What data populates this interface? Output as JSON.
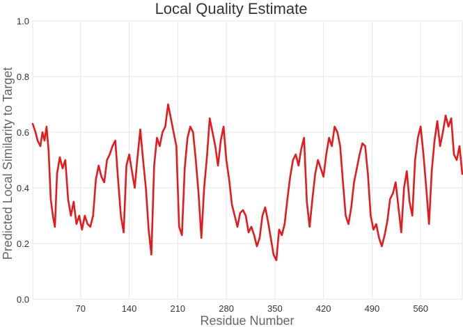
{
  "chart_data": {
    "type": "line",
    "title": "Local Quality Estimate",
    "xlabel": "Residue Number",
    "ylabel": "Predicted Local Similarity to Target",
    "xlim": [
      1,
      620
    ],
    "ylim": [
      0,
      1
    ],
    "xticks": [
      70,
      140,
      210,
      280,
      350,
      420,
      490,
      560
    ],
    "yticks": [
      0.0,
      0.2,
      0.4,
      0.6,
      0.8,
      1.0
    ],
    "ytick_labels": [
      "0.0",
      "0.2",
      "0.4",
      "0.6",
      "0.8",
      "1.0"
    ],
    "grid": true,
    "legend": "none",
    "colors": {
      "series": "#e41a1c",
      "grid": "#e6e6e6"
    },
    "series": [
      {
        "x": [
          1,
          5,
          8,
          12,
          15,
          18,
          21,
          24,
          27,
          30,
          33,
          36,
          40,
          44,
          48,
          52,
          56,
          60,
          64,
          68,
          72,
          76,
          80,
          84,
          88,
          92,
          96,
          100,
          104,
          108,
          112,
          116,
          120,
          124,
          128,
          132,
          136,
          140,
          144,
          148,
          152,
          156,
          160,
          164,
          168,
          172,
          176,
          180,
          184,
          188,
          192,
          196,
          200,
          204,
          208,
          212,
          216,
          220,
          224,
          228,
          232,
          236,
          240,
          244,
          248,
          252,
          256,
          260,
          264,
          268,
          272,
          276,
          280,
          284,
          288,
          292,
          296,
          300,
          304,
          308,
          312,
          316,
          320,
          324,
          328,
          332,
          336,
          340,
          344,
          348,
          352,
          356,
          360,
          364,
          368,
          372,
          376,
          380,
          384,
          388,
          392,
          396,
          400,
          404,
          408,
          412,
          416,
          420,
          424,
          428,
          432,
          436,
          440,
          444,
          448,
          452,
          456,
          460,
          464,
          468,
          472,
          476,
          480,
          484,
          488,
          492,
          496,
          500,
          504,
          508,
          512,
          516,
          520,
          524,
          528,
          532,
          536,
          540,
          544,
          548,
          552,
          556,
          560,
          564,
          568,
          572,
          576,
          580,
          584,
          588,
          592,
          596,
          600,
          604,
          608,
          612,
          616,
          620
        ],
        "y": [
          0.63,
          0.6,
          0.57,
          0.55,
          0.6,
          0.57,
          0.62,
          0.53,
          0.36,
          0.3,
          0.26,
          0.45,
          0.51,
          0.47,
          0.5,
          0.36,
          0.3,
          0.35,
          0.27,
          0.3,
          0.25,
          0.3,
          0.27,
          0.26,
          0.3,
          0.43,
          0.48,
          0.44,
          0.42,
          0.5,
          0.52,
          0.55,
          0.57,
          0.43,
          0.3,
          0.24,
          0.48,
          0.52,
          0.46,
          0.4,
          0.51,
          0.61,
          0.5,
          0.4,
          0.25,
          0.16,
          0.48,
          0.58,
          0.55,
          0.6,
          0.62,
          0.7,
          0.65,
          0.6,
          0.55,
          0.26,
          0.23,
          0.47,
          0.58,
          0.62,
          0.6,
          0.5,
          0.38,
          0.22,
          0.4,
          0.51,
          0.65,
          0.6,
          0.55,
          0.48,
          0.57,
          0.62,
          0.5,
          0.43,
          0.34,
          0.3,
          0.26,
          0.31,
          0.32,
          0.3,
          0.24,
          0.26,
          0.23,
          0.19,
          0.22,
          0.3,
          0.33,
          0.28,
          0.22,
          0.16,
          0.14,
          0.25,
          0.23,
          0.27,
          0.36,
          0.44,
          0.5,
          0.52,
          0.48,
          0.54,
          0.58,
          0.35,
          0.26,
          0.36,
          0.45,
          0.5,
          0.47,
          0.44,
          0.52,
          0.58,
          0.55,
          0.62,
          0.6,
          0.55,
          0.42,
          0.3,
          0.27,
          0.33,
          0.42,
          0.47,
          0.52,
          0.56,
          0.55,
          0.45,
          0.3,
          0.25,
          0.27,
          0.22,
          0.19,
          0.23,
          0.28,
          0.36,
          0.38,
          0.42,
          0.33,
          0.24,
          0.4,
          0.46,
          0.35,
          0.3,
          0.5,
          0.58,
          0.62,
          0.52,
          0.4,
          0.27,
          0.46,
          0.57,
          0.64,
          0.55,
          0.6,
          0.66,
          0.62,
          0.65,
          0.52,
          0.5,
          0.55,
          0.45
        ]
      }
    ]
  }
}
